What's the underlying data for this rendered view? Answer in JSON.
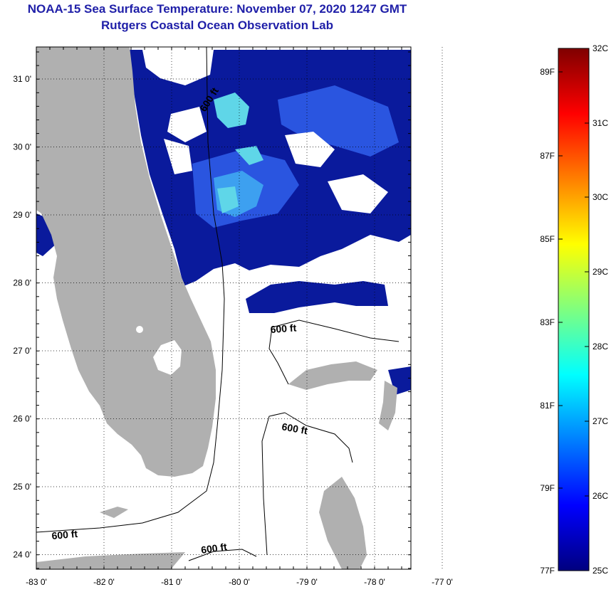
{
  "header": {
    "title": "NOAA-15 Sea Surface Temperature:  November 07, 2020 1247 GMT",
    "subtitle": "Rutgers Coastal Ocean Observation Lab"
  },
  "map": {
    "x_ticks": [
      "-83 0'",
      "-82 0'",
      "-81 0'",
      "-80 0'",
      "-79 0'",
      "-78 0'",
      "-77 0'"
    ],
    "y_ticks": [
      "31 0'",
      "30 0'",
      "29 0'",
      "28 0'",
      "27 0'",
      "26 0'",
      "25 0'",
      "24 0'"
    ],
    "contour_label": "600 ft",
    "colors": {
      "land": "#b0b0b0",
      "no_data": "#ffffff",
      "deep_blue": "#0a1a9c",
      "mid_blue": "#2a55e0",
      "light_blue": "#3da0f0",
      "cyan": "#5fd6e8"
    }
  },
  "colorbar": {
    "f_labels": [
      "89F",
      "87F",
      "85F",
      "83F",
      "81F",
      "79F",
      "77F"
    ],
    "c_labels": [
      "32C",
      "31C",
      "30C",
      "29C",
      "28C",
      "27C",
      "26C",
      "25C"
    ],
    "stops": [
      "#00007f",
      "#0000ff",
      "#007fff",
      "#00ffff",
      "#7fff7f",
      "#ffff00",
      "#ff7f00",
      "#ff0000",
      "#7f0000"
    ]
  }
}
